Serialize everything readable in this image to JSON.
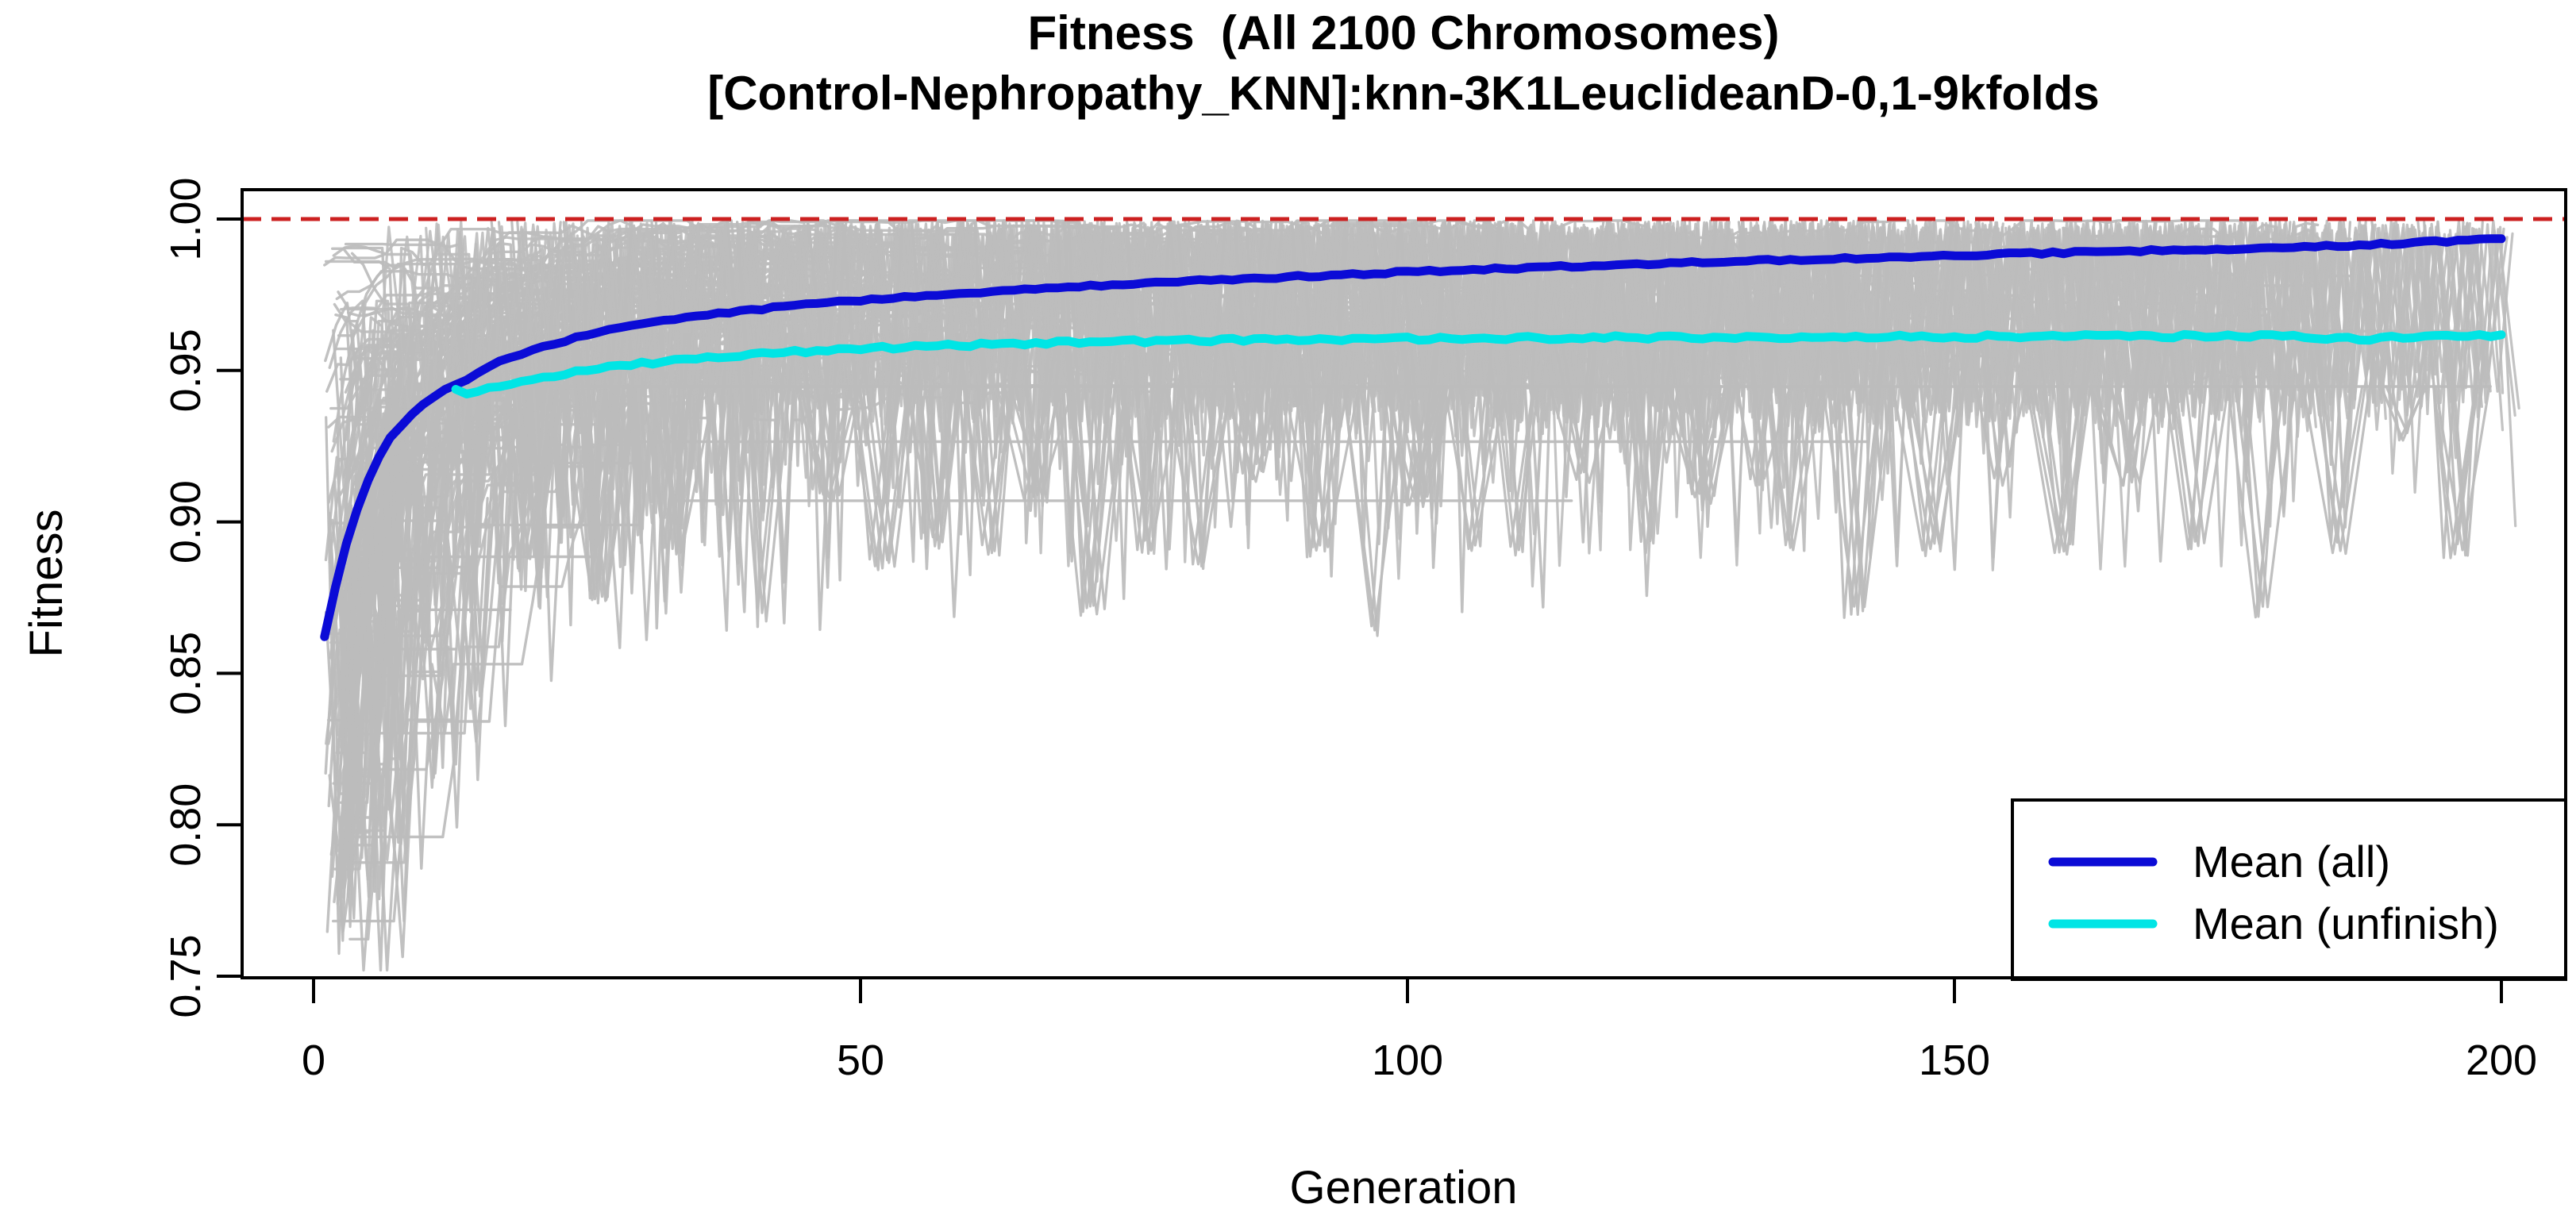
{
  "chart_data": {
    "type": "line",
    "title": "Fitness  (All 2100 Chromosomes)",
    "subtitle": "[Control-Nephropathy_KNN]:knn-3K1LeuclideanD-0,1-9kfolds",
    "xlabel": "Generation",
    "ylabel": "Fitness",
    "x_ticks": [
      0,
      50,
      100,
      150,
      200
    ],
    "y_ticks": [
      0.75,
      0.8,
      0.85,
      0.9,
      0.95,
      1.0
    ],
    "xlim": [
      -6.5,
      205.8
    ],
    "ylim": [
      0.748,
      1.0097
    ],
    "grid": false,
    "reference_line": {
      "y": 1.0,
      "color": "#cc2020",
      "style": "dashed"
    },
    "series": [
      {
        "name": "Mean (all)",
        "color": "#0b0bd6",
        "points": [
          [
            1,
            0.862
          ],
          [
            2,
            0.8785
          ],
          [
            3,
            0.8925
          ],
          [
            4,
            0.9045
          ],
          [
            5,
            0.914
          ],
          [
            6,
            0.9215
          ],
          [
            7,
            0.9275
          ],
          [
            8,
            0.932
          ],
          [
            9,
            0.9358
          ],
          [
            10,
            0.939
          ],
          [
            11,
            0.9415
          ],
          [
            12,
            0.9437
          ],
          [
            13,
            0.9452
          ],
          [
            14,
            0.9465
          ],
          [
            15,
            0.949
          ],
          [
            16,
            0.9512
          ],
          [
            18,
            0.9543
          ],
          [
            20,
            0.9568
          ],
          [
            22,
            0.959
          ],
          [
            24,
            0.9608
          ],
          [
            26,
            0.9625
          ],
          [
            28,
            0.9639
          ],
          [
            30,
            0.9652
          ],
          [
            33,
            0.9669
          ],
          [
            36,
            0.9684
          ],
          [
            40,
            0.97
          ],
          [
            44,
            0.9714
          ],
          [
            48,
            0.9727
          ],
          [
            52,
            0.9738
          ],
          [
            56,
            0.9748
          ],
          [
            60,
            0.9757
          ],
          [
            65,
            0.9768
          ],
          [
            70,
            0.9778
          ],
          [
            75,
            0.9787
          ],
          [
            80,
            0.9795
          ],
          [
            85,
            0.9803
          ],
          [
            90,
            0.981
          ],
          [
            95,
            0.9818
          ],
          [
            100,
            0.9825
          ],
          [
            105,
            0.9832
          ],
          [
            110,
            0.9838
          ],
          [
            115,
            0.9844
          ],
          [
            120,
            0.985
          ],
          [
            125,
            0.9855
          ],
          [
            130,
            0.986
          ],
          [
            135,
            0.9865
          ],
          [
            140,
            0.987
          ],
          [
            145,
            0.9875
          ],
          [
            150,
            0.988
          ],
          [
            155,
            0.9885
          ],
          [
            160,
            0.9889
          ],
          [
            165,
            0.9893
          ],
          [
            170,
            0.9897
          ],
          [
            175,
            0.9901
          ],
          [
            180,
            0.9905
          ],
          [
            185,
            0.9912
          ],
          [
            190,
            0.9919
          ],
          [
            195,
            0.9927
          ],
          [
            200,
            0.9935
          ]
        ]
      },
      {
        "name": "Mean (unfinish)",
        "color": "#00e5e5",
        "points": [
          [
            13,
            0.9435
          ],
          [
            14,
            0.9425
          ],
          [
            15,
            0.9428
          ],
          [
            16,
            0.944
          ],
          [
            17,
            0.9449
          ],
          [
            18,
            0.9457
          ],
          [
            19,
            0.9463
          ],
          [
            20,
            0.947
          ],
          [
            22,
            0.9483
          ],
          [
            24,
            0.9495
          ],
          [
            26,
            0.9506
          ],
          [
            28,
            0.9515
          ],
          [
            30,
            0.9523
          ],
          [
            32,
            0.953
          ],
          [
            34,
            0.9537
          ],
          [
            36,
            0.9543
          ],
          [
            38,
            0.9549
          ],
          [
            40,
            0.9554
          ],
          [
            43,
            0.956
          ],
          [
            46,
            0.9566
          ],
          [
            50,
            0.9572
          ],
          [
            54,
            0.9577
          ],
          [
            58,
            0.9582
          ],
          [
            62,
            0.9586
          ],
          [
            66,
            0.959
          ],
          [
            70,
            0.9593
          ],
          [
            75,
            0.9596
          ],
          [
            80,
            0.9599
          ],
          [
            85,
            0.9601
          ],
          [
            90,
            0.9602
          ],
          [
            95,
            0.9604
          ],
          [
            100,
            0.9605
          ],
          [
            105,
            0.9606
          ],
          [
            110,
            0.9607
          ],
          [
            115,
            0.9608
          ],
          [
            120,
            0.9609
          ],
          [
            125,
            0.9609
          ],
          [
            130,
            0.961
          ],
          [
            135,
            0.961
          ],
          [
            140,
            0.9611
          ],
          [
            145,
            0.9611
          ],
          [
            150,
            0.9612
          ],
          [
            155,
            0.9612
          ],
          [
            160,
            0.9613
          ],
          [
            165,
            0.9613
          ],
          [
            170,
            0.9613
          ],
          [
            175,
            0.9614
          ],
          [
            180,
            0.9612
          ],
          [
            184,
            0.9607
          ],
          [
            188,
            0.9604
          ],
          [
            192,
            0.9613
          ],
          [
            196,
            0.961
          ],
          [
            200,
            0.9618
          ]
        ]
      }
    ],
    "background_ensemble": {
      "description": "Individual fitness trajectories of all 2100 chromosomes (grey spaghetti)",
      "count_label": 2100,
      "color": "#bcbcbc",
      "value_range": [
        0.757,
        1.0
      ],
      "seed": 42,
      "early_fan": {
        "count": 135,
        "start_gen": [
          1,
          4
        ],
        "start_value": [
          0.757,
          0.992
        ]
      },
      "top_band": {
        "count": 72,
        "base_value": [
          0.932,
          0.949
        ],
        "top_value": 1.0
      },
      "plateaus": [
        [
          18,
          199,
          0.9447
        ],
        [
          100,
          197,
          0.963
        ],
        [
          26,
          142,
          0.9265
        ],
        [
          33,
          115,
          0.907
        ],
        [
          10,
          26,
          0.8885
        ],
        [
          8,
          18,
          0.871
        ],
        [
          5,
          13,
          0.858
        ],
        [
          14,
          30,
          0.899
        ]
      ],
      "funnels": [
        [
          2.5,
          0.757
        ],
        [
          3.5,
          0.766
        ],
        [
          6,
          0.773
        ],
        [
          8,
          0.79
        ],
        [
          11,
          0.812
        ],
        [
          15,
          0.842
        ],
        [
          20,
          0.886
        ],
        [
          26,
          0.873
        ],
        [
          33,
          0.889
        ],
        [
          41,
          0.867
        ],
        [
          47,
          0.905
        ],
        [
          52,
          0.883
        ],
        [
          57,
          0.89
        ],
        [
          62,
          0.888
        ],
        [
          66,
          0.905
        ],
        [
          71,
          0.868
        ],
        [
          76,
          0.889
        ],
        [
          81,
          0.885
        ],
        [
          86,
          0.912
        ],
        [
          92,
          0.888
        ],
        [
          97,
          0.862
        ],
        [
          101,
          0.905
        ],
        [
          106,
          0.889
        ],
        [
          110,
          0.888
        ],
        [
          116,
          0.912
        ],
        [
          122,
          0.889
        ],
        [
          127,
          0.905
        ],
        [
          132,
          0.912
        ],
        [
          135,
          0.888
        ],
        [
          141,
          0.868
        ],
        [
          148,
          0.888
        ],
        [
          154,
          0.912
        ],
        [
          160,
          0.889
        ],
        [
          166,
          0.912
        ],
        [
          172,
          0.889
        ],
        [
          178,
          0.868
        ],
        [
          185,
          0.889
        ],
        [
          191,
          0.926
        ],
        [
          196,
          0.888
        ]
      ]
    },
    "legend": {
      "position": "bottomright",
      "entries": [
        {
          "label": "Mean (all)",
          "color": "#0b0bd6"
        },
        {
          "label": "Mean (unfinish)",
          "color": "#00e5e5"
        }
      ]
    }
  }
}
